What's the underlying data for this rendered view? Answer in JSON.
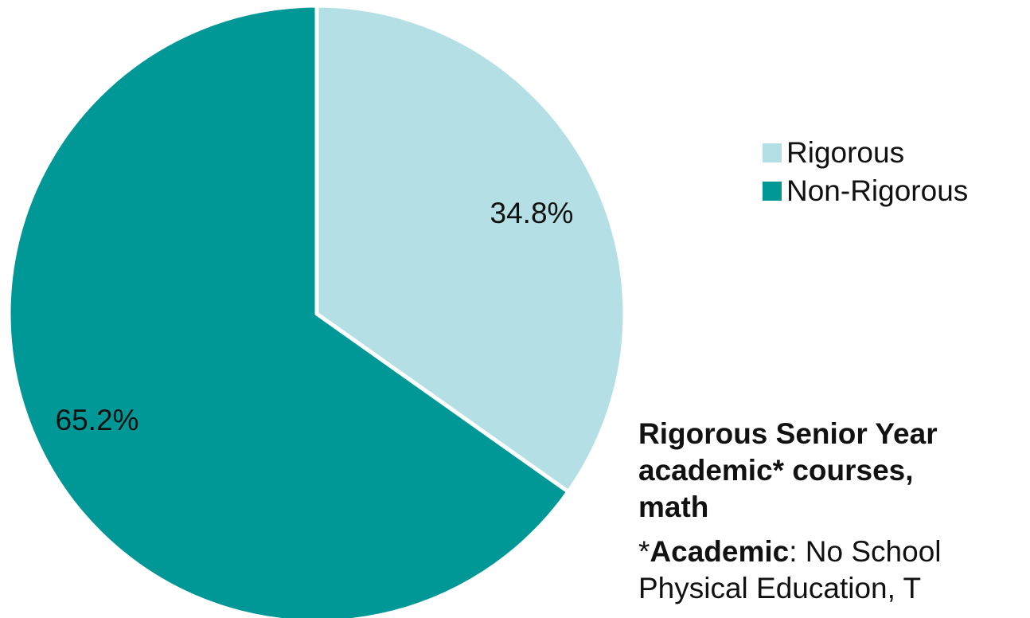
{
  "chart_data": {
    "type": "pie",
    "categories": [
      "Rigorous",
      "Non-Rigorous"
    ],
    "values": [
      34.8,
      65.2
    ],
    "data_labels": [
      "34.8%",
      "65.2%"
    ],
    "colors": [
      "#b4dfe4",
      "#009897"
    ],
    "start_angle": "12 o'clock",
    "direction": "clockwise",
    "legend": {
      "placement": "right",
      "entries": [
        "Rigorous",
        "Non-Rigorous"
      ]
    }
  },
  "note": {
    "heading": "Rigorous Senior Year\nacademic* courses,\nmath",
    "def_prefix": "*",
    "def_term": "Academic",
    "def_text": ": No School\nPhysical Education, T"
  }
}
